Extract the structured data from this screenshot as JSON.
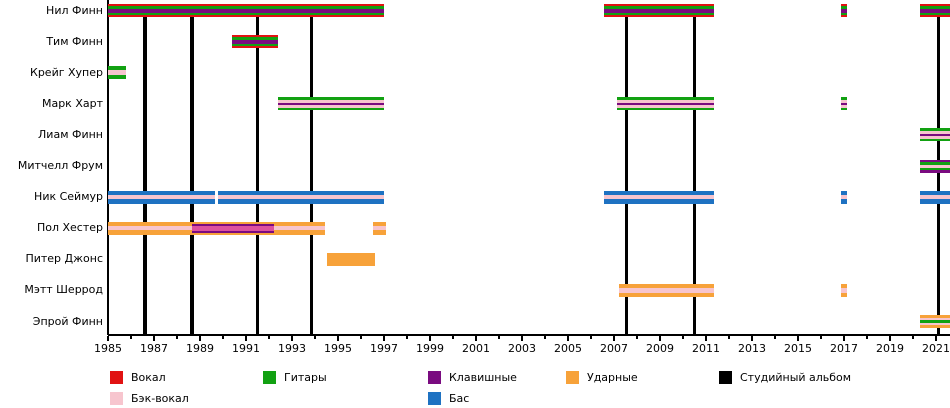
{
  "chart_data": {
    "type": "timeline",
    "title": "",
    "x_axis": {
      "start_year": 1985,
      "end_year": 2021.65,
      "tick_every_years": 1,
      "label_every_years": 2,
      "label_years": [
        1985,
        1987,
        1989,
        1991,
        1993,
        1995,
        1997,
        1999,
        2001,
        2003,
        2005,
        2007,
        2009,
        2011,
        2013,
        2015,
        2017,
        2019,
        2021
      ]
    },
    "roles_colors": {
      "vocal": "#e11212",
      "back_vocal": "#f7c5ce",
      "guitar": "#12a112",
      "keyboard": "#7a0b80",
      "bass": "#1e72c2",
      "drums": "#f7a23a",
      "deep_pink": "#de4f9e",
      "album": "#000000"
    },
    "album_years": [
      1986.6,
      1988.65,
      1991.5,
      1993.85,
      2007.55,
      2010.5,
      2021.1
    ],
    "members": [
      {
        "name": "Нил Финн",
        "pattern": [
          [
            "vocal",
            2
          ],
          [
            "guitar",
            2.5
          ],
          [
            "keyboard",
            4
          ],
          [
            "guitar",
            2.5
          ],
          [
            "vocal",
            2
          ]
        ],
        "segments": [
          [
            1985.0,
            1997.0
          ],
          [
            2006.57,
            2011.35
          ],
          [
            2016.87,
            2017.11
          ],
          [
            2020.3,
            2021.65
          ]
        ]
      },
      {
        "name": "Тим Финн",
        "pattern": [
          [
            "vocal",
            2
          ],
          [
            "guitar",
            2.5
          ],
          [
            "keyboard",
            4
          ],
          [
            "guitar",
            2.5
          ],
          [
            "vocal",
            2
          ]
        ],
        "segments": [
          [
            1990.4,
            1992.4
          ]
        ]
      },
      {
        "name": "Крейг Хупер",
        "pattern": [
          [
            "guitar",
            4
          ],
          [
            "back_vocal",
            5
          ],
          [
            "guitar",
            4
          ]
        ],
        "segments": [
          [
            1985.0,
            1985.8
          ]
        ]
      },
      {
        "name": "Марк Харт",
        "pattern": [
          [
            "guitar",
            2.5
          ],
          [
            "back_vocal",
            2.75
          ],
          [
            "keyboard",
            2.5
          ],
          [
            "back_vocal",
            2.75
          ],
          [
            "guitar",
            2.5
          ]
        ],
        "segments": [
          [
            1992.4,
            1997.0
          ],
          [
            2007.13,
            2011.35
          ],
          [
            2016.87,
            2017.11
          ]
        ]
      },
      {
        "name": "Лиам Финн",
        "pattern": [
          [
            "guitar",
            2.5
          ],
          [
            "back_vocal",
            2.75
          ],
          [
            "keyboard",
            2.5
          ],
          [
            "back_vocal",
            2.75
          ],
          [
            "guitar",
            2.5
          ]
        ],
        "segments": [
          [
            2020.3,
            2021.65
          ]
        ]
      },
      {
        "name": "Митчелл Фрум",
        "pattern": [
          [
            "keyboard",
            2.5
          ],
          [
            "guitar",
            2.5
          ],
          [
            "back_vocal",
            3
          ],
          [
            "guitar",
            2.5
          ],
          [
            "keyboard",
            2.5
          ]
        ],
        "segments": [
          [
            2020.3,
            2021.65
          ]
        ]
      },
      {
        "name": "Ник Сеймур",
        "pattern": [
          [
            "bass",
            4.5
          ],
          [
            "back_vocal",
            4
          ],
          [
            "bass",
            4.5
          ]
        ],
        "segments": [
          [
            1985.0,
            1989.65
          ],
          [
            1989.78,
            1997.0
          ],
          [
            2006.57,
            2011.35
          ],
          [
            2016.87,
            2017.11
          ],
          [
            2020.3,
            2021.65
          ]
        ]
      },
      {
        "name": "Пол Хестер",
        "pattern": [
          [
            "drums",
            4
          ],
          [
            "back_vocal",
            4
          ],
          [
            "drums",
            4
          ]
        ],
        "segments": [
          [
            1985.0,
            1994.45
          ],
          [
            1996.5,
            1997.1
          ]
        ],
        "overlay": {
          "pattern": [
            [
              "drums",
              2
            ],
            [
              "keyboard",
              2
            ],
            [
              "deep_pink",
              5
            ],
            [
              "keyboard",
              2
            ],
            [
              "drums",
              2
            ]
          ],
          "segments": [
            [
              1988.65,
              1992.2
            ]
          ]
        }
      },
      {
        "name": "Питер Джонс",
        "pattern": [
          [
            "drums",
            1
          ]
        ],
        "segments": [
          [
            1994.5,
            1996.6
          ]
        ]
      },
      {
        "name": "Мэтт Шеррод",
        "pattern": [
          [
            "drums",
            4
          ],
          [
            "back_vocal",
            4
          ],
          [
            "drums",
            4
          ]
        ],
        "segments": [
          [
            2007.2,
            2011.35
          ],
          [
            2016.87,
            2017.11
          ]
        ]
      },
      {
        "name": "Эпрой Финн",
        "pattern": [
          [
            "drums",
            3
          ],
          [
            "back_vocal",
            2
          ],
          [
            "guitar",
            3
          ],
          [
            "back_vocal",
            2
          ],
          [
            "drums",
            3
          ]
        ],
        "segments": [
          [
            2020.3,
            2021.65
          ]
        ]
      }
    ],
    "legend": {
      "rows": [
        [
          {
            "col": 0,
            "label": "Вокал",
            "color": "vocal"
          },
          {
            "col": 1,
            "label": "Гитары",
            "color": "guitar"
          },
          {
            "col": 2,
            "label": "Клавишные",
            "color": "keyboard"
          },
          {
            "col": 3,
            "label": "Ударные",
            "color": "drums"
          },
          {
            "col": 4,
            "label": "Студийный альбом",
            "color": "album"
          }
        ],
        [
          {
            "col": 0,
            "label": "Бэк-вокал",
            "color": "back_vocal"
          },
          {
            "col": 2,
            "label": "Бас",
            "color": "bass"
          }
        ]
      ]
    }
  }
}
